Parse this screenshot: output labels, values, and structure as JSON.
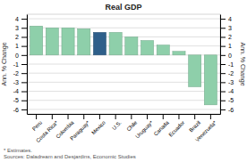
{
  "chart_data": {
    "type": "bar",
    "title": "Real GDP",
    "ylabel": "Ann. % Change",
    "y2label": "Ann. % Change",
    "categories": [
      "Peru",
      "Costa Rica*",
      "Colombia",
      "Paraguay*",
      "Mexico",
      "U.S.",
      "Chile",
      "Uruguay*",
      "Canada",
      "Ecuador",
      "Brazil",
      "Venezuela*"
    ],
    "values": [
      3.2,
      3.0,
      3.0,
      2.9,
      2.5,
      2.5,
      2.0,
      1.6,
      1.1,
      0.4,
      -3.5,
      -5.5
    ],
    "colors": [
      "#8ecfaa",
      "#8ecfaa",
      "#8ecfaa",
      "#8ecfaa",
      "#2e5f8a",
      "#8ecfaa",
      "#8ecfaa",
      "#8ecfaa",
      "#8ecfaa",
      "#8ecfaa",
      "#8ecfaa",
      "#8ecfaa"
    ],
    "ylim": [
      -6.5,
      4.5
    ],
    "yticks": [
      -6,
      -5,
      -4,
      -3,
      -2,
      -1,
      0,
      1,
      2,
      3,
      4
    ],
    "y2lim": [
      -6.5,
      4.5
    ],
    "y2ticks": [
      -6,
      -5,
      -4,
      -3,
      -2,
      -1,
      0,
      1,
      2,
      3,
      4
    ],
    "grid": true,
    "footnote": [
      "* Estimates.",
      "Sources: Daladream and Desjardins, Economic Studies"
    ]
  }
}
